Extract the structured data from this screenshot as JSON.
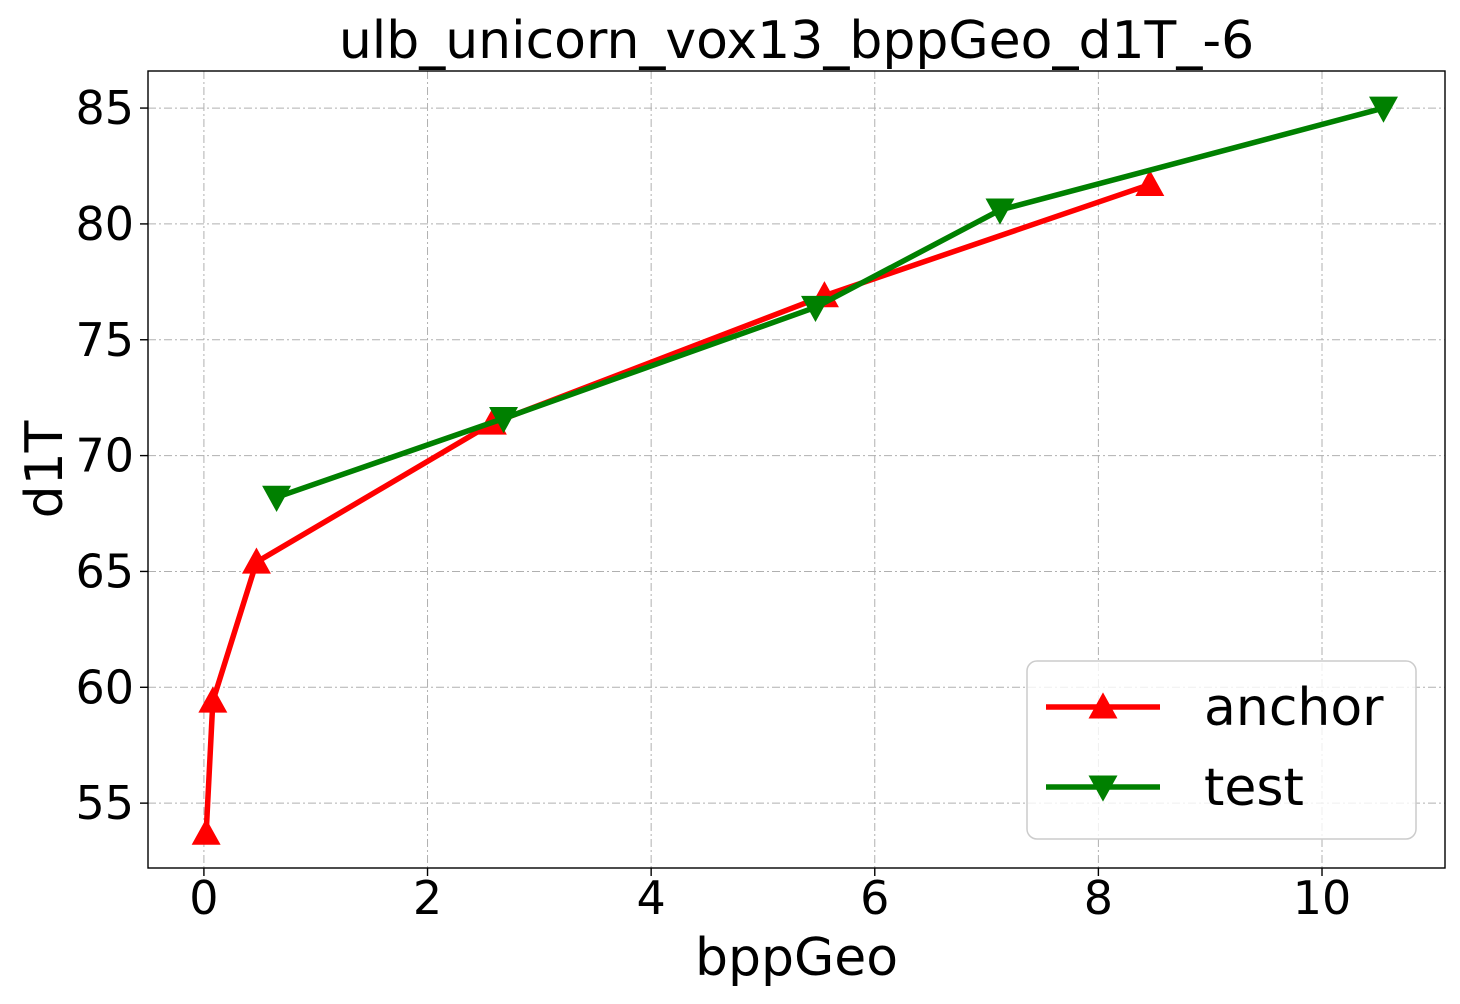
{
  "chart_data": {
    "type": "line",
    "title": "ulb_unicorn_vox13_bppGeo_d1T_-6",
    "xlabel": "bppGeo",
    "ylabel": "d1T",
    "xlim": [
      -0.5,
      11.1
    ],
    "ylim": [
      52.2,
      86.6
    ],
    "xticks": [
      0,
      2,
      4,
      6,
      8,
      10
    ],
    "yticks": [
      55,
      60,
      65,
      70,
      75,
      80,
      85
    ],
    "grid": true,
    "legend_position": "lower-right",
    "series": [
      {
        "name": "anchor",
        "color": "#ff0000",
        "marker": "triangle-up",
        "x": [
          0.02,
          0.08,
          0.47,
          2.58,
          5.55,
          8.46
        ],
        "y": [
          53.7,
          59.4,
          65.4,
          71.4,
          76.9,
          81.7
        ]
      },
      {
        "name": "test",
        "color": "#008000",
        "marker": "triangle-down",
        "x": [
          0.65,
          2.68,
          5.47,
          7.12,
          10.55
        ],
        "y": [
          68.2,
          71.6,
          76.4,
          80.6,
          85.0
        ]
      }
    ]
  }
}
